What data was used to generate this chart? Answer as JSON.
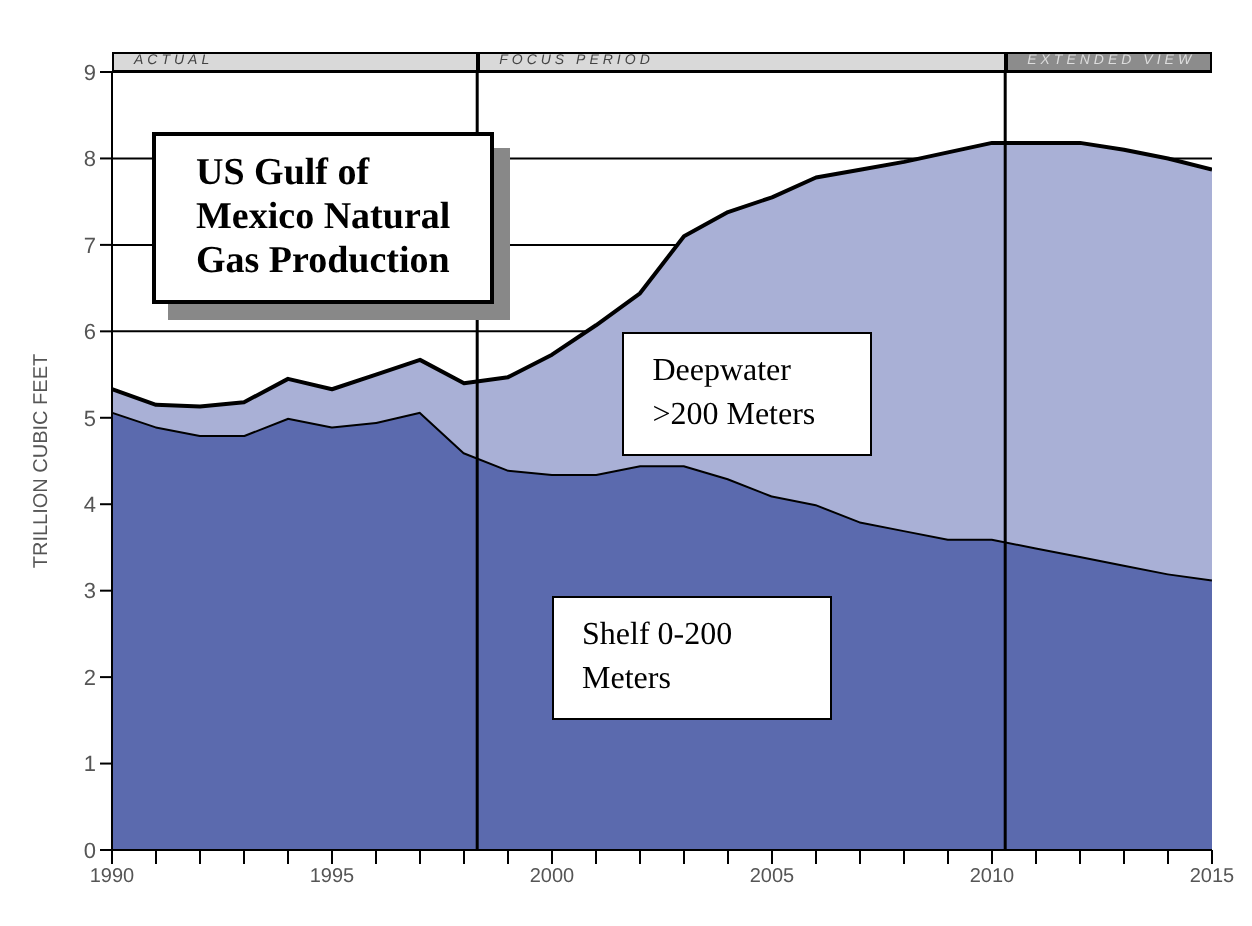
{
  "chart_data": {
    "type": "area",
    "title": "US Gulf of Mexico Natural Gas Production",
    "ylabel": "TRILLION CUBIC FEET",
    "stacked": true,
    "x": [
      1990,
      1991,
      1992,
      1993,
      1994,
      1995,
      1996,
      1997,
      1998,
      1999,
      2000,
      2001,
      2002,
      2003,
      2004,
      2005,
      2006,
      2007,
      2008,
      2009,
      2010,
      2011,
      2012,
      2013,
      2014,
      2015
    ],
    "series": [
      {
        "name": "Shelf 0-200 Meters",
        "color": "#5b6aae",
        "values": [
          5.07,
          4.9,
          4.8,
          4.8,
          5.0,
          4.9,
          4.95,
          5.07,
          4.6,
          4.4,
          4.35,
          4.35,
          4.45,
          4.45,
          4.3,
          4.1,
          4.0,
          3.8,
          3.7,
          3.6,
          3.6,
          3.5,
          3.4,
          3.3,
          3.2,
          3.13
        ]
      },
      {
        "name": "Deepwater >200 Meters",
        "color": "#a9b0d6",
        "values": [
          0.26,
          0.25,
          0.33,
          0.38,
          0.45,
          0.43,
          0.55,
          0.6,
          0.8,
          1.07,
          1.38,
          1.72,
          1.99,
          2.65,
          3.08,
          3.45,
          3.78,
          4.07,
          4.26,
          4.47,
          4.58,
          4.68,
          4.78,
          4.8,
          4.8,
          4.74
        ]
      }
    ],
    "ref_lines": [
      {
        "axis": "x",
        "value": 1998.3,
        "color": "#000000"
      },
      {
        "axis": "x",
        "value": 2010.3,
        "color": "#000000"
      }
    ],
    "annotations": [
      "ACTUAL",
      "FOCUS PERIOD",
      "EXTENDED VIEW"
    ],
    "xlim": [
      1990,
      2015
    ],
    "xticks": [
      1990,
      {
        "value": 1991,
        "label": null
      },
      {
        "value": 1992,
        "label": null
      },
      {
        "value": 1993,
        "label": null
      },
      {
        "value": 1994,
        "label": null
      },
      1995,
      {
        "value": 1996,
        "label": null
      },
      {
        "value": 1997,
        "label": null
      },
      {
        "value": 1998,
        "label": null
      },
      {
        "value": 1999,
        "label": null
      },
      2000,
      {
        "value": 2001,
        "label": null
      },
      {
        "value": 2002,
        "label": null
      },
      {
        "value": 2003,
        "label": null
      },
      {
        "value": 2004,
        "label": null
      },
      2005,
      {
        "value": 2006,
        "label": null
      },
      {
        "value": 2007,
        "label": null
      },
      {
        "value": 2008,
        "label": null
      },
      {
        "value": 2009,
        "label": null
      },
      2010,
      {
        "value": 2011,
        "label": null
      },
      {
        "value": 2012,
        "label": null
      },
      {
        "value": 2013,
        "label": null
      },
      {
        "value": 2014,
        "label": null
      },
      2015
    ],
    "ylim": [
      0,
      9
    ],
    "yticks": [
      0,
      1,
      2,
      3,
      4,
      5,
      6,
      7,
      8,
      9
    ],
    "grid": "y"
  }
}
